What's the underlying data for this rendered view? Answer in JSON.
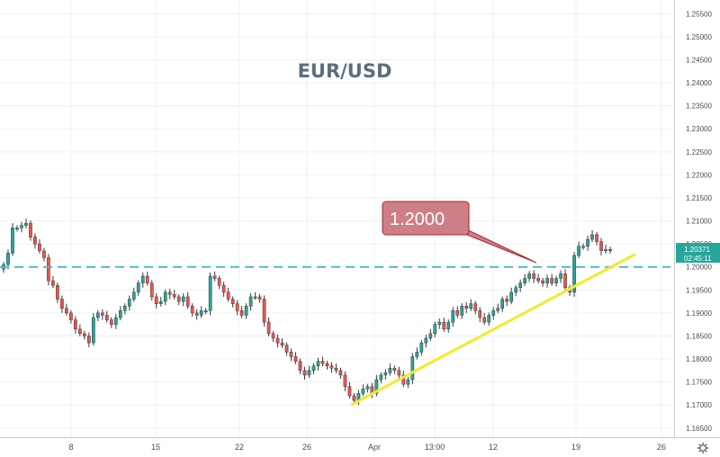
{
  "chart_data": {
    "type": "candlestick",
    "title": "EUR/USD",
    "y_axis": {
      "ticks": [
        "1.25500",
        "1.25000",
        "1.24500",
        "1.24000",
        "1.23500",
        "1.23000",
        "1.22500",
        "1.22000",
        "1.21500",
        "1.21000",
        "1.20500",
        "1.20000",
        "1.19500",
        "1.19000",
        "1.18500",
        "1.18000",
        "1.17500",
        "1.17000",
        "1.16500"
      ],
      "range": [
        1.163,
        1.258
      ]
    },
    "x_axis": {
      "ticks": [
        "8",
        "15",
        "22",
        "26",
        "Apr",
        "13:00",
        "12",
        "19",
        "26"
      ]
    },
    "key_level": 1.2,
    "callout_text": "1.2000",
    "trendline": {
      "from": [
        1.17,
        0.0
      ],
      "to": [
        1.2028,
        1.0
      ]
    },
    "current_price": "1.20371",
    "countdown": "02:45:11",
    "closes_approx": [
      1.2005,
      1.203,
      1.2085,
      1.2085,
      1.209,
      1.2095,
      1.2065,
      1.205,
      1.2035,
      1.202,
      1.197,
      1.196,
      1.193,
      1.191,
      1.19,
      1.1885,
      1.1865,
      1.1855,
      1.185,
      1.1835,
      1.189,
      1.19,
      1.1895,
      1.1885,
      1.1875,
      1.189,
      1.1905,
      1.1915,
      1.193,
      1.1945,
      1.1965,
      1.198,
      1.1965,
      1.1935,
      1.192,
      1.1925,
      1.1945,
      1.194,
      1.1935,
      1.1925,
      1.1935,
      1.1915,
      1.19,
      1.1895,
      1.1905,
      1.1905,
      1.198,
      1.1975,
      1.196,
      1.1945,
      1.193,
      1.192,
      1.1905,
      1.1895,
      1.1915,
      1.1935,
      1.1935,
      1.193,
      1.188,
      1.1855,
      1.1845,
      1.1835,
      1.183,
      1.1815,
      1.1805,
      1.1795,
      1.1775,
      1.1765,
      1.1775,
      1.1785,
      1.1795,
      1.179,
      1.1785,
      1.178,
      1.1775,
      1.1765,
      1.174,
      1.172,
      1.171,
      1.1725,
      1.1735,
      1.174,
      1.1725,
      1.1755,
      1.1765,
      1.177,
      1.178,
      1.1775,
      1.1765,
      1.1745,
      1.1755,
      1.1805,
      1.1815,
      1.1835,
      1.1845,
      1.1855,
      1.1875,
      1.188,
      1.1865,
      1.188,
      1.1905,
      1.1895,
      1.1915,
      1.191,
      1.192,
      1.1905,
      1.189,
      1.188,
      1.1895,
      1.1905,
      1.191,
      1.193,
      1.1925,
      1.1945,
      1.1955,
      1.1965,
      1.1975,
      1.1985,
      1.1975,
      1.197,
      1.1965,
      1.1975,
      1.1965,
      1.1975,
      1.1985,
      1.1955,
      1.1945,
      1.2025,
      1.2045,
      1.2045,
      1.206,
      1.207,
      1.2055,
      1.2035,
      1.2038,
      1.2037
    ]
  }
}
